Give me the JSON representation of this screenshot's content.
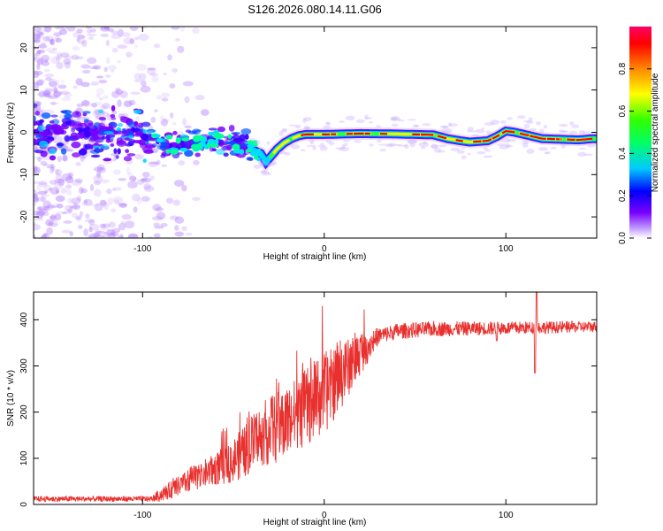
{
  "title": "S126.2026.080.14.11.G06",
  "colors": {
    "snr_line": "#e8312f",
    "spectrogram_band_core": "#ff0000",
    "spectrogram_band_edge": "#7a00ff",
    "spectrogram_scatter": "#b07cff"
  },
  "chart_data": [
    {
      "type": "heatmap",
      "name": "spectrogram",
      "xlabel": "Height of straight line (km)",
      "ylabel": "Frequency (Hz)",
      "xlim": [
        -160,
        150
      ],
      "ylim": [
        -25,
        25
      ],
      "xticks": [
        -100,
        0,
        100
      ],
      "xtick_labels": [
        "-100",
        "0",
        "100"
      ],
      "yticks": [
        -20,
        -10,
        0,
        10,
        20
      ],
      "ytick_labels": [
        "-20",
        "-10",
        "0",
        "10",
        "20"
      ],
      "band_center_hz": {
        "x": [
          -160,
          -100,
          -90,
          -60,
          -45,
          -40,
          -35,
          -32,
          -30,
          -26,
          -22,
          -18,
          -14,
          -10,
          0,
          20,
          40,
          60,
          68,
          75,
          80,
          90,
          95,
          100,
          105,
          110,
          115,
          120,
          140,
          148
        ],
        "y": [
          0,
          0,
          -3,
          -2,
          -3,
          -4,
          -5,
          -7,
          -6,
          -4,
          -2.5,
          -1.5,
          -0.8,
          -0.5,
          -0.5,
          -0.3,
          -0.4,
          -0.6,
          -1.5,
          -2,
          -2.3,
          -2,
          -1,
          0.3,
          0,
          -0.5,
          -1,
          -1.5,
          -1.8,
          -1.5
        ]
      },
      "colorbar": {
        "label": "Normalized spectral amplitude",
        "range": [
          0,
          1
        ],
        "ticks": [
          0.0,
          0.2,
          0.4,
          0.6,
          0.8
        ],
        "tick_labels": [
          "0.0",
          "0.2",
          "0.4",
          "0.6",
          "0.8"
        ]
      }
    },
    {
      "type": "line",
      "name": "snr",
      "xlabel": "Height of straight line (km)",
      "ylabel": "SNR (10 * v/v)",
      "xlim": [
        -160,
        150
      ],
      "ylim": [
        0,
        460
      ],
      "xticks": [
        -100,
        0,
        100
      ],
      "xtick_labels": [
        "-100",
        "0",
        "100"
      ],
      "yticks": [
        0,
        100,
        200,
        300,
        400
      ],
      "ytick_labels": [
        "0",
        "100",
        "200",
        "300",
        "400"
      ],
      "trend": {
        "x": [
          -160,
          -95,
          -85,
          -70,
          -55,
          -45,
          -35,
          -20,
          -10,
          0,
          10,
          20,
          30,
          40,
          60,
          100,
          150
        ],
        "y": [
          12,
          12,
          30,
          60,
          85,
          110,
          150,
          180,
          210,
          240,
          280,
          330,
          365,
          375,
          380,
          382,
          385
        ]
      },
      "noise_amplitude": [
        {
          "x": -160,
          "amp": 6
        },
        {
          "x": -95,
          "amp": 6
        },
        {
          "x": -90,
          "amp": 15
        },
        {
          "x": -60,
          "amp": 35
        },
        {
          "x": -30,
          "amp": 75
        },
        {
          "x": 0,
          "amp": 90
        },
        {
          "x": 20,
          "amp": 50
        },
        {
          "x": 30,
          "amp": 18
        },
        {
          "x": 150,
          "amp": 12
        }
      ],
      "features": [
        {
          "x": 95,
          "y": 355
        },
        {
          "x": 117,
          "y": 460
        },
        {
          "x": 116,
          "y": 285
        }
      ]
    }
  ]
}
